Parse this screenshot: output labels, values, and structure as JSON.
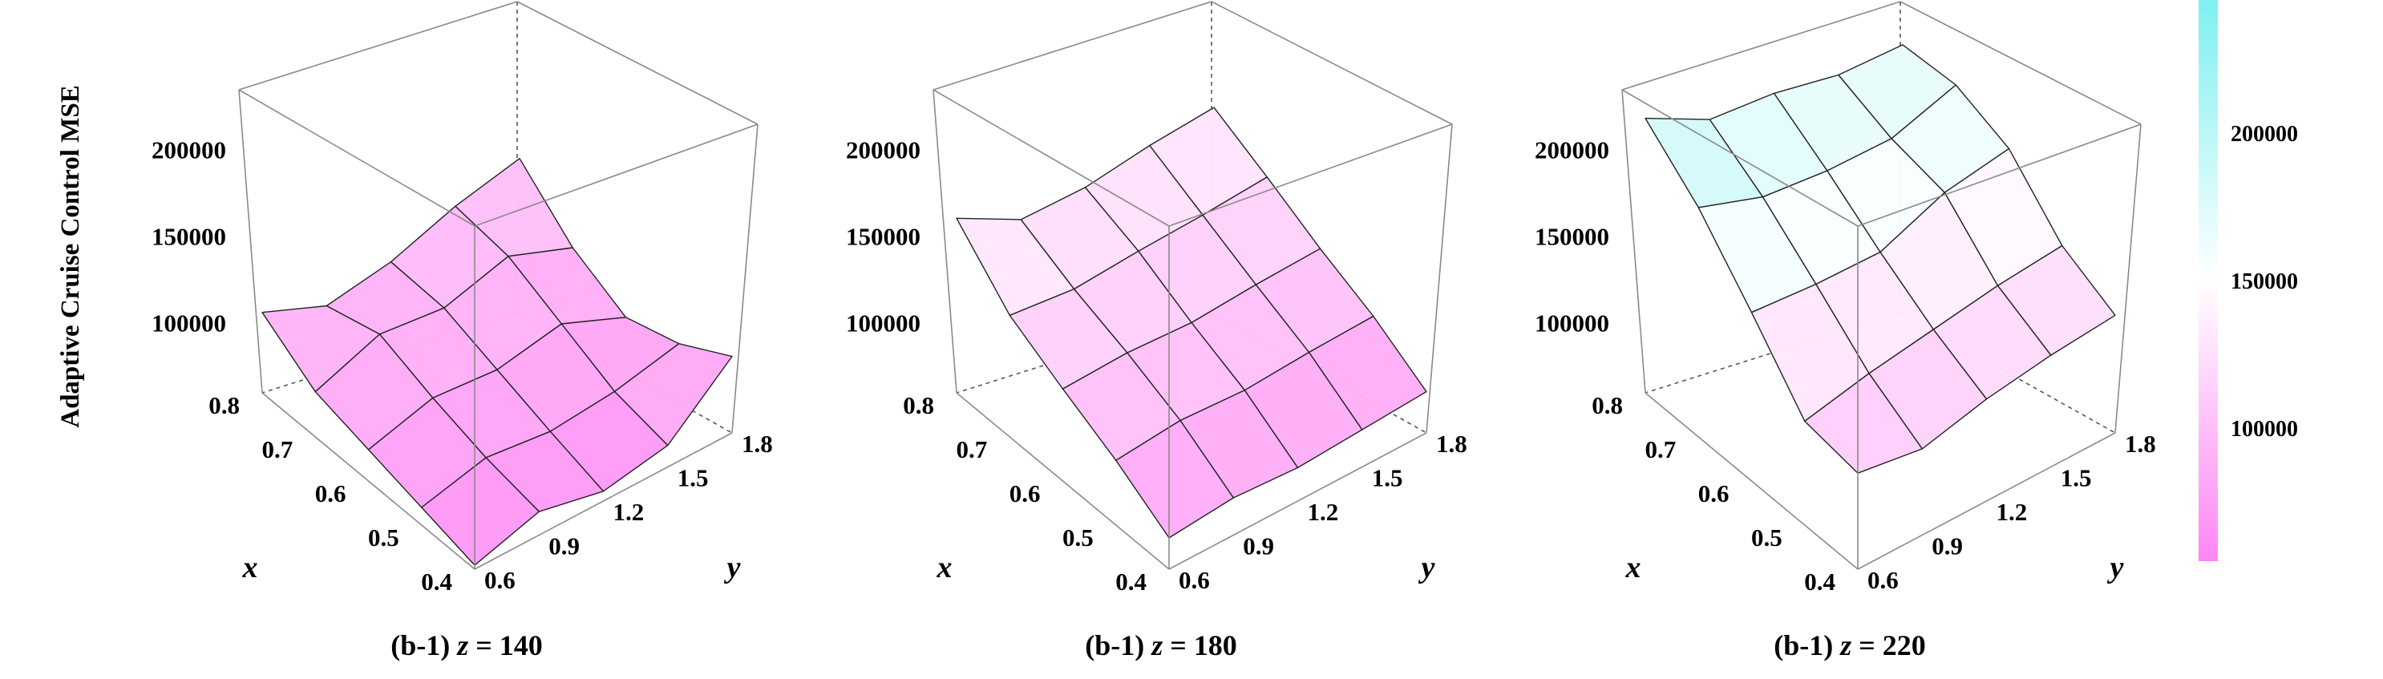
{
  "colors": {
    "low": "#ff86f4",
    "mid": "#ffffff",
    "high": "#7ff0f0",
    "grid": "#8a8a8a",
    "edge": "#222222"
  },
  "chart_data": [
    {
      "type": "surface3d",
      "caption": "(b-1) z = 140",
      "caption_prefix": "(b-1)",
      "caption_var": "z",
      "caption_value": "140",
      "zlabel": "Adaptive Cruise Control MSE",
      "xlabel": "x",
      "ylabel": "y",
      "x_ticks": [
        "0.4",
        "0.5",
        "0.6",
        "0.7",
        "0.8"
      ],
      "y_ticks": [
        "0.6",
        "0.9",
        "1.2",
        "1.5",
        "1.8"
      ],
      "z_ticks": [
        "100000",
        "150000",
        "200000"
      ],
      "zlim": [
        60000,
        235000
      ],
      "x": [
        0.4,
        0.5,
        0.6,
        0.7,
        0.8
      ],
      "y": [
        0.6,
        0.9,
        1.2,
        1.5,
        1.8
      ],
      "z": [
        [
          62000,
          72000,
          65000,
          71000,
          99000
        ],
        [
          69000,
          77000,
          73000,
          76000,
          83000
        ],
        [
          76000,
          85000,
          82000,
          88000,
          74000
        ],
        [
          83000,
          95000,
          91000,
          100000,
          87000
        ],
        [
          101000,
          87000,
          92000,
          103000,
          110000
        ]
      ]
    },
    {
      "type": "surface3d",
      "caption": "(b-1) z = 180",
      "caption_prefix": "(b-1)",
      "caption_var": "z",
      "caption_value": "180",
      "xlabel": "x",
      "ylabel": "y",
      "x_ticks": [
        "0.4",
        "0.5",
        "0.6",
        "0.7",
        "0.8"
      ],
      "y_ticks": [
        "0.6",
        "0.9",
        "1.2",
        "1.5",
        "1.8"
      ],
      "z_ticks": [
        "100000",
        "150000",
        "200000"
      ],
      "zlim": [
        60000,
        235000
      ],
      "x": [
        0.4,
        0.5,
        0.6,
        0.7,
        0.8
      ],
      "y": [
        0.6,
        0.9,
        1.2,
        1.5,
        1.8
      ],
      "z": [
        [
          76000,
          79000,
          77000,
          79000,
          81000
        ],
        [
          93000,
          96000,
          94000,
          96000,
          97000
        ],
        [
          107000,
          108000,
          106000,
          108000,
          109000
        ],
        [
          122000,
          118000,
          120000,
          121000,
          123000
        ],
        [
          149000,
          131000,
          130000,
          134000,
          136000
        ]
      ]
    },
    {
      "type": "surface3d",
      "caption": "(b-1) z = 220",
      "caption_prefix": "(b-1)",
      "caption_var": "z",
      "caption_value": "220",
      "xlabel": "x",
      "ylabel": "y",
      "x_ticks": [
        "0.4",
        "0.5",
        "0.6",
        "0.7",
        "0.8"
      ],
      "y_ticks": [
        "0.6",
        "0.9",
        "1.2",
        "1.5",
        "1.8"
      ],
      "z_ticks": [
        "100000",
        "150000",
        "200000"
      ],
      "zlim": [
        60000,
        235000
      ],
      "x": [
        0.4,
        0.5,
        0.6,
        0.7,
        0.8
      ],
      "y": [
        0.6,
        0.9,
        1.2,
        1.5,
        1.8
      ],
      "z": [
        [
          109000,
          104000,
          112000,
          117000,
          120000
        ],
        [
          113000,
          120000,
          125000,
          130000,
          133000
        ],
        [
          146000,
          143000,
          142000,
          155000,
          160000
        ],
        [
          177000,
          165000,
          161000,
          160000,
          170000
        ],
        [
          200000,
          182000,
          178000,
          170000,
          168000
        ]
      ]
    }
  ],
  "colorbar": {
    "ticks": [
      "100000",
      "150000",
      "200000"
    ],
    "tick_values": [
      100000,
      150000,
      200000
    ],
    "range": [
      55000,
      245000
    ]
  }
}
